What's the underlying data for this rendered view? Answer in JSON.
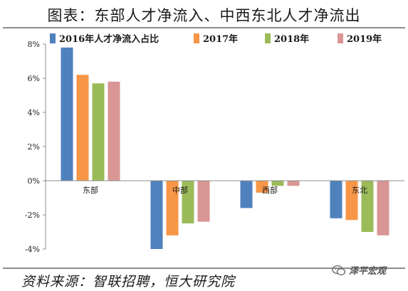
{
  "chart_data": {
    "type": "bar",
    "title": "图表：东部人才净流入、中西东北人才净流出",
    "categories": [
      "东部",
      "中部",
      "西部",
      "东北"
    ],
    "series": [
      {
        "name": "2016年人才净流入占比",
        "color": "#4f81bd",
        "values": [
          7.8,
          -4.0,
          -1.6,
          -2.2
        ]
      },
      {
        "name": "2017年",
        "color": "#f79646",
        "values": [
          6.2,
          -3.2,
          -0.7,
          -2.3
        ]
      },
      {
        "name": "2018年",
        "color": "#9bbb59",
        "values": [
          5.7,
          -2.5,
          -0.3,
          -3.0
        ]
      },
      {
        "name": "2019年",
        "color": "#d99694",
        "values": [
          5.8,
          -2.4,
          -0.3,
          -3.2
        ]
      }
    ],
    "y_ticks": [
      "8%",
      "6%",
      "4%",
      "2%",
      "0%",
      "-2%",
      "-4%"
    ],
    "ylim": [
      -4,
      8
    ],
    "legend_position": "top",
    "grid": false
  },
  "source": "资料来源：智联招聘，恒大研究院",
  "watermark": "泽平宏观"
}
